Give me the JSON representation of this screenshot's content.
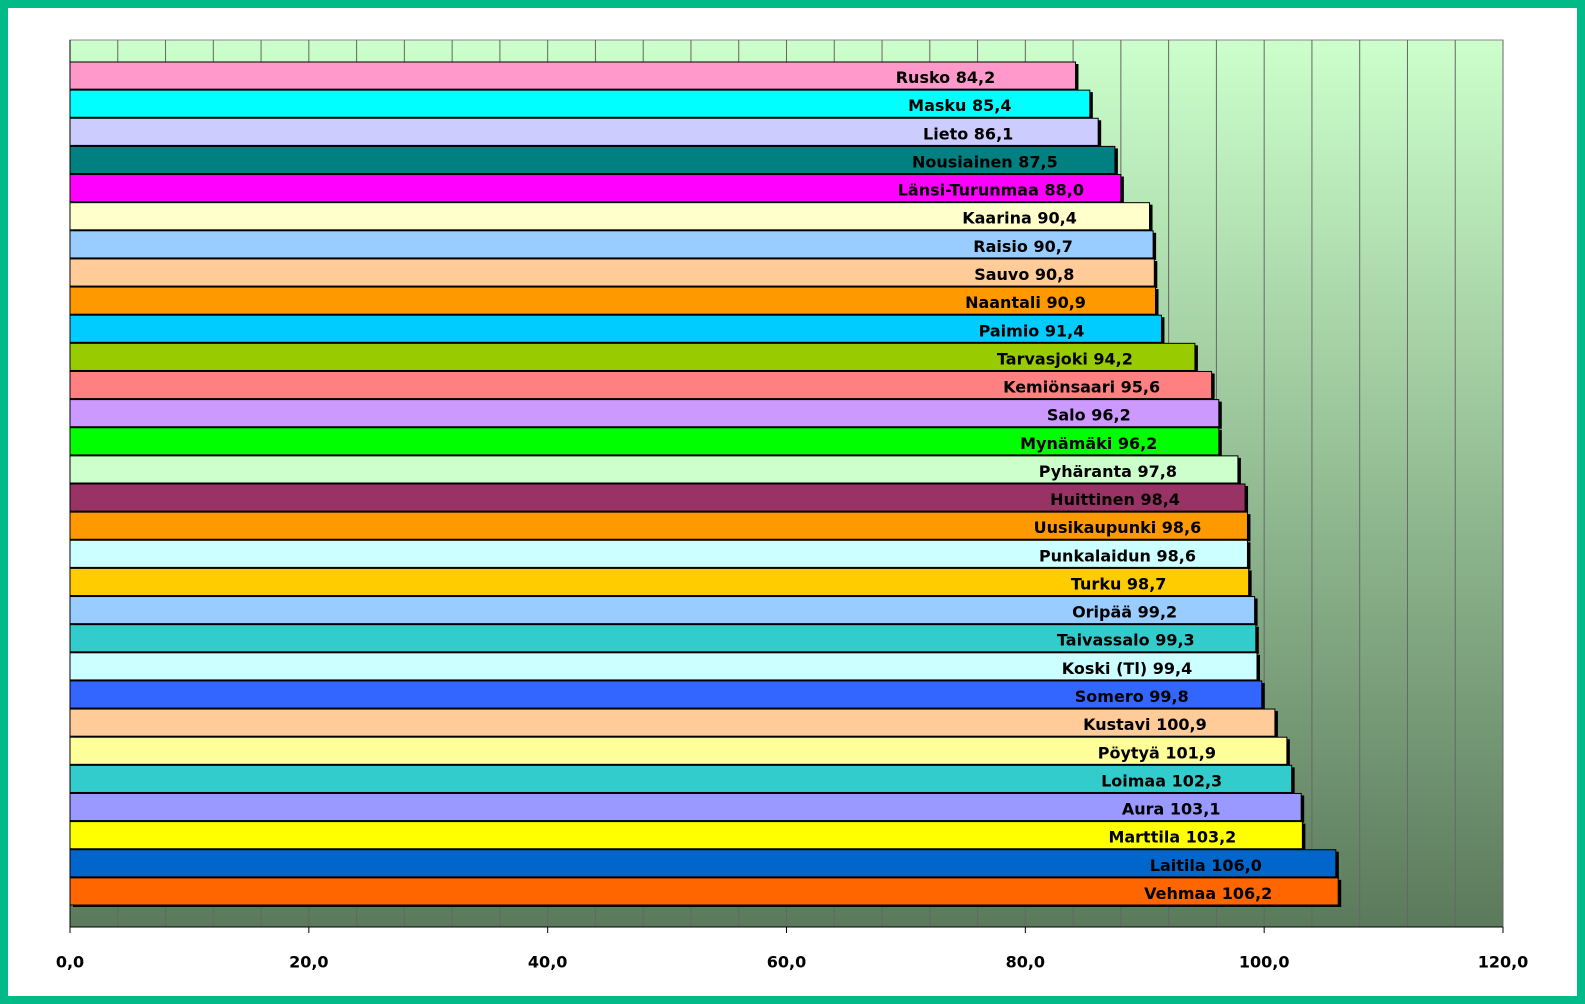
{
  "chart_data": {
    "type": "bar",
    "orientation": "horizontal",
    "categories": [
      "Rusko",
      "Masku",
      "Lieto",
      "Nousiainen",
      "Länsi-Turunmaa",
      "Kaarina",
      "Raisio",
      "Sauvo",
      "Naantali",
      "Paimio",
      "Tarvasjoki",
      "Kemiönsaari",
      "Salo",
      "Mynämäki",
      "Pyhäranta",
      "Huittinen",
      "Uusikaupunki",
      "Punkalaidun",
      "Turku",
      "Oripää",
      "Taivassalo",
      "Koski (Tl)",
      "Somero",
      "Kustavi",
      "Pöytyä",
      "Loimaa",
      "Aura",
      "Marttila",
      "Laitila",
      "Vehmaa"
    ],
    "values": [
      84.2,
      85.4,
      86.1,
      87.5,
      88.0,
      90.4,
      90.7,
      90.8,
      90.9,
      91.4,
      94.2,
      95.6,
      96.2,
      96.2,
      97.8,
      98.4,
      98.6,
      98.6,
      98.7,
      99.2,
      99.3,
      99.4,
      99.8,
      100.9,
      101.9,
      102.3,
      103.1,
      103.2,
      106.0,
      106.2
    ],
    "value_labels": [
      "84,2",
      "85,4",
      "86,1",
      "87,5",
      "88,0",
      "90,4",
      "90,7",
      "90,8",
      "90,9",
      "91,4",
      "94,2",
      "95,6",
      "96,2",
      "96,2",
      "97,8",
      "98,4",
      "98,6",
      "98,6",
      "98,7",
      "99,2",
      "99,3",
      "99,4",
      "99,8",
      "100,9",
      "101,9",
      "102,3",
      "103,1",
      "103,2",
      "106,0",
      "106,2"
    ],
    "colors": [
      "#ff99cc",
      "#00ffff",
      "#ccccff",
      "#008080",
      "#ff00ff",
      "#ffffcc",
      "#99ccff",
      "#ffcc99",
      "#ff9900",
      "#00ccff",
      "#99cc00",
      "#ff8080",
      "#cc99ff",
      "#00ff00",
      "#ccffcc",
      "#993366",
      "#ff9900",
      "#ccffff",
      "#ffcc00",
      "#99ccff",
      "#33cccc",
      "#ccffff",
      "#3366ff",
      "#ffcc99",
      "#ffff99",
      "#33cccc",
      "#9999ff",
      "#ffff00",
      "#0066cc",
      "#ff6600"
    ],
    "xlim": [
      0,
      120
    ],
    "xticks": [
      {
        "value": 0,
        "label": "0,0"
      },
      {
        "value": 20,
        "label": "20,0"
      },
      {
        "value": 40,
        "label": "40,0"
      },
      {
        "value": 60,
        "label": "60,0"
      },
      {
        "value": 80,
        "label": "80,0"
      },
      {
        "value": 100,
        "label": "100,0"
      },
      {
        "value": 120,
        "label": "120,0"
      }
    ],
    "grid": true
  }
}
